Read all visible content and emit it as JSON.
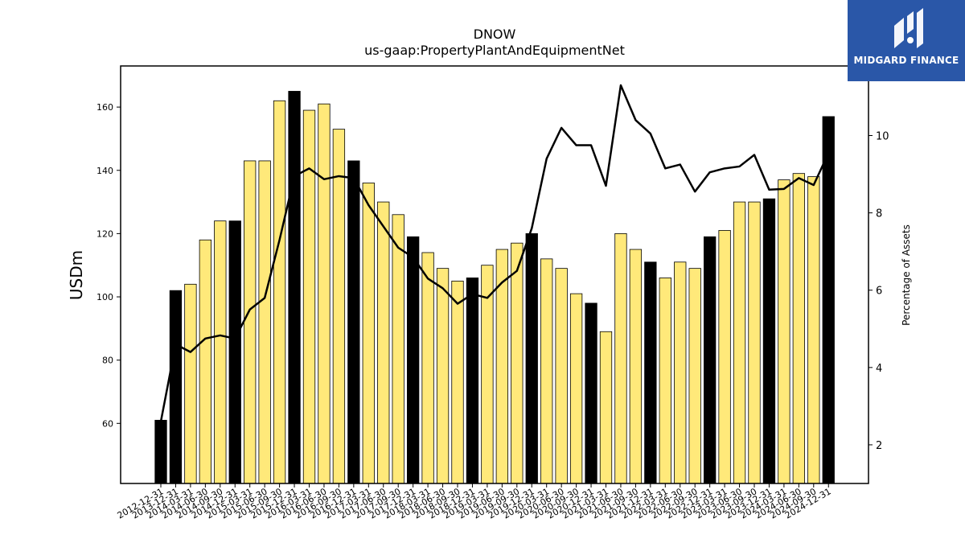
{
  "header": {
    "title": "DNOW",
    "subtitle": "us-gaap:PropertyPlantAndEquipmentNet"
  },
  "logo": {
    "text": "MIDGARD FINANCE",
    "icon": "midgard-logo-icon"
  },
  "colors": {
    "annual_bar": "#000000",
    "quarter_bar": "#ffe97a",
    "line": "#000000",
    "logo_bg": "#2a57a8"
  },
  "chart_data": {
    "type": "bar",
    "title": "DNOW",
    "subtitle": "us-gaap:PropertyPlantAndEquipmentNet",
    "ylabel": "USDm",
    "y2label": "Percentage of Assets",
    "ylim": [
      41,
      173
    ],
    "y2lim": [
      1,
      11.8
    ],
    "yticks": [
      60,
      80,
      100,
      120,
      140,
      160
    ],
    "y2ticks": [
      2,
      4,
      6,
      8,
      10
    ],
    "grid": false,
    "categories": [
      "2012-12-31",
      "2013-12-31",
      "2014-03-31",
      "2014-06-30",
      "2014-09-30",
      "2014-12-31",
      "2015-03-31",
      "2015-06-30",
      "2015-09-30",
      "2015-12-31",
      "2016-03-31",
      "2016-06-30",
      "2016-09-30",
      "2016-12-31",
      "2017-03-31",
      "2017-06-30",
      "2017-09-30",
      "2017-12-31",
      "2018-03-31",
      "2018-06-30",
      "2018-09-30",
      "2018-12-31",
      "2019-03-31",
      "2019-06-30",
      "2019-09-30",
      "2019-12-31",
      "2020-03-31",
      "2020-06-30",
      "2020-09-30",
      "2020-12-31",
      "2021-03-31",
      "2021-06-30",
      "2021-09-30",
      "2021-12-31",
      "2022-03-31",
      "2022-06-30",
      "2022-09-30",
      "2022-12-31",
      "2023-03-31",
      "2023-06-30",
      "2023-09-30",
      "2023-12-31",
      "2024-03-31",
      "2024-06-30",
      "2024-09-30",
      "2024-12-31"
    ],
    "series": [
      {
        "type": "bar",
        "values": [
          61,
          102,
          104,
          118,
          124,
          124,
          143,
          143,
          162,
          165,
          159,
          161,
          153,
          143,
          136,
          130,
          126,
          119,
          114,
          109,
          105,
          106,
          110,
          115,
          117,
          120,
          112,
          109,
          101,
          98,
          89,
          120,
          115,
          111,
          106,
          111,
          109,
          119,
          121,
          130,
          130,
          131,
          137,
          139,
          138,
          157
        ],
        "annual": [
          true,
          true,
          false,
          false,
          false,
          true,
          false,
          false,
          false,
          true,
          false,
          false,
          false,
          true,
          false,
          false,
          false,
          true,
          false,
          false,
          false,
          true,
          false,
          false,
          false,
          true,
          false,
          false,
          false,
          true,
          false,
          false,
          false,
          true,
          false,
          false,
          false,
          true,
          false,
          false,
          false,
          true,
          false,
          false,
          false,
          true
        ]
      },
      {
        "type": "line",
        "axis": "right",
        "values": [
          2.6,
          4.6,
          4.4,
          4.75,
          4.83,
          4.75,
          5.5,
          5.8,
          7.3,
          8.95,
          9.15,
          8.87,
          8.95,
          8.9,
          8.2,
          7.65,
          7.1,
          6.85,
          6.3,
          6.05,
          5.65,
          5.9,
          5.8,
          6.2,
          6.5,
          7.6,
          9.4,
          10.2,
          9.75,
          9.75,
          8.7,
          11.3,
          10.4,
          10.05,
          9.15,
          9.25,
          8.55,
          9.05,
          9.15,
          9.2,
          9.5,
          8.6,
          8.62,
          8.9,
          8.72,
          9.55
        ]
      }
    ]
  }
}
